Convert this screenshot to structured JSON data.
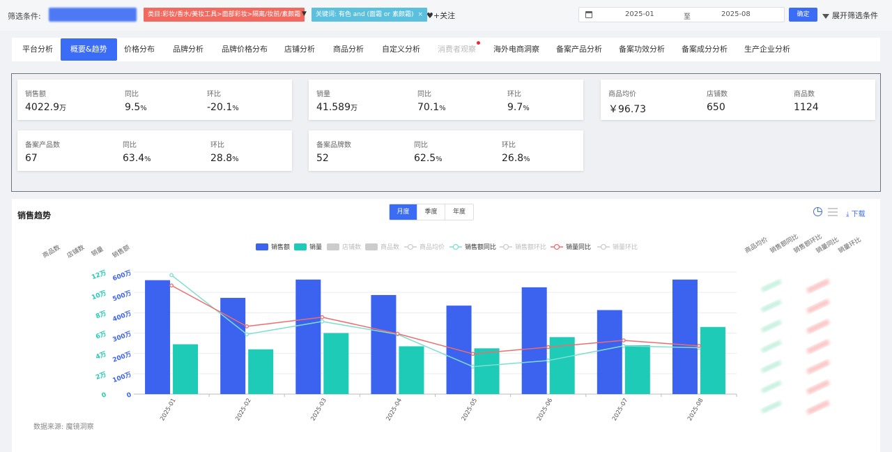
{
  "filter": {
    "label": "筛选条件:",
    "category_tag": "类目:彩妆/香水/美妆工具>面部彩妆>隔离/妆前/素颜霜",
    "keyword_tag": "关键词: 有色 and (面霜 or 素颜霜)",
    "close_glyph": "×",
    "caret_glyph": "▼",
    "follow_label": "♥+关注",
    "date_start": "2025-01",
    "date_sep": "至",
    "date_end": "2025-08",
    "confirm_label": "确定",
    "expand_label": "展开筛选条件"
  },
  "tabs": [
    {
      "label": "平台分析",
      "state": "normal"
    },
    {
      "label": "概要&趋势",
      "state": "active"
    },
    {
      "label": "价格分布",
      "state": "normal"
    },
    {
      "label": "品牌分析",
      "state": "normal"
    },
    {
      "label": "品牌价格分布",
      "state": "normal"
    },
    {
      "label": "店铺分析",
      "state": "normal"
    },
    {
      "label": "商品分析",
      "state": "normal"
    },
    {
      "label": "自定义分析",
      "state": "normal"
    },
    {
      "label": "消费者观察",
      "state": "disabled"
    },
    {
      "label": "海外电商洞察",
      "state": "normal"
    },
    {
      "label": "备案产品分析",
      "state": "normal"
    },
    {
      "label": "备案功效分析",
      "state": "normal"
    },
    {
      "label": "备案成分分析",
      "state": "normal"
    },
    {
      "label": "生产企业分析",
      "state": "normal"
    }
  ],
  "kpi": {
    "card1": [
      {
        "label": "销售额",
        "value": "4022.9",
        "unit": "万"
      },
      {
        "label": "同比",
        "value": "9.5",
        "unit": "%"
      },
      {
        "label": "环比",
        "value": "-20.1",
        "unit": "%"
      }
    ],
    "card2": [
      {
        "label": "销量",
        "value": "41.589",
        "unit": "万"
      },
      {
        "label": "同比",
        "value": "70.1",
        "unit": "%"
      },
      {
        "label": "环比",
        "value": "9.7",
        "unit": "%"
      }
    ],
    "card3": [
      {
        "label": "商品均价",
        "value": "￥96.73",
        "unit": ""
      },
      {
        "label": "店铺数",
        "value": "650",
        "unit": ""
      },
      {
        "label": "商品数",
        "value": "1124",
        "unit": ""
      }
    ],
    "card4": [
      {
        "label": "备案产品数",
        "value": "67",
        "unit": ""
      },
      {
        "label": "同比",
        "value": "63.4",
        "unit": "%"
      },
      {
        "label": "环比",
        "value": "28.8",
        "unit": "%"
      }
    ],
    "card5": [
      {
        "label": "备案品牌数",
        "value": "52",
        "unit": ""
      },
      {
        "label": "同比",
        "value": "62.5",
        "unit": "%"
      },
      {
        "label": "环比",
        "value": "26.8",
        "unit": "%"
      }
    ]
  },
  "chart_section": {
    "title": "销售趋势",
    "segments": [
      "月度",
      "季度",
      "年度"
    ],
    "active_segment": "月度",
    "download_label": "下载",
    "source": "数据来源: 魔镜洞察",
    "left_axis_headers": [
      "商品数",
      "店铺数",
      "销量",
      "销售额"
    ],
    "right_axis_headers": [
      "商品均价",
      "销售额同比",
      "销售额环比",
      "销量同比",
      "销量环比"
    ]
  },
  "chart_data": {
    "type": "bar",
    "categories": [
      "2025-01",
      "2025-02",
      "2025-03",
      "2025-04",
      "2025-05",
      "2025-06",
      "2025-07",
      "2025-08"
    ],
    "legend": [
      {
        "name": "销售额",
        "kind": "bar",
        "color": "#3b63f0",
        "active": true
      },
      {
        "name": "销量",
        "kind": "bar",
        "color": "#1ecbb7",
        "active": true
      },
      {
        "name": "店铺数",
        "kind": "bar",
        "color": "#cccccc",
        "active": false
      },
      {
        "name": "商品数",
        "kind": "bar",
        "color": "#cccccc",
        "active": false
      },
      {
        "name": "商品均价",
        "kind": "line",
        "color": "#cccccc",
        "active": false
      },
      {
        "name": "销售额同比",
        "kind": "line",
        "color": "#7ddfd1",
        "active": true
      },
      {
        "name": "销售额环比",
        "kind": "line",
        "color": "#cccccc",
        "active": false
      },
      {
        "name": "销量同比",
        "kind": "line",
        "color": "#f06c6c",
        "active": true
      },
      {
        "name": "销量环比",
        "kind": "line",
        "color": "#cccccc",
        "active": false
      }
    ],
    "series": [
      {
        "name": "销售额",
        "kind": "bar",
        "axis": "sales",
        "unit": "万",
        "color": "#3b63f0",
        "values": [
          560,
          473,
          563,
          487,
          435,
          525,
          413,
          563
        ]
      },
      {
        "name": "销量",
        "kind": "bar",
        "axis": "volume",
        "unit": "万",
        "color": "#1ecbb7",
        "values": [
          4.9,
          4.4,
          6.0,
          4.7,
          4.5,
          5.6,
          4.8,
          6.6
        ]
      },
      {
        "name": "销售额同比",
        "kind": "line",
        "color": "#7ddfd1",
        "y_relative": [
          0.975,
          0.49,
          0.595,
          0.49,
          0.225,
          0.275,
          0.395,
          0.38
        ]
      },
      {
        "name": "销量同比",
        "kind": "line",
        "color": "#f06c6c",
        "y_relative": [
          0.89,
          0.555,
          0.63,
          0.495,
          0.33,
          0.385,
          0.44,
          0.395
        ]
      }
    ],
    "axes": {
      "sales": {
        "ticks": [
          "0",
          "100万",
          "200万",
          "300万",
          "400万",
          "500万",
          "600万"
        ],
        "max": 600,
        "color": "#3b63f0"
      },
      "volume": {
        "ticks": [
          "0",
          "2万",
          "4万",
          "6万",
          "8万",
          "10万",
          "12万"
        ],
        "max": 12,
        "color": "#1ecbb7"
      }
    },
    "grid": true,
    "legend_position": "top-center"
  }
}
